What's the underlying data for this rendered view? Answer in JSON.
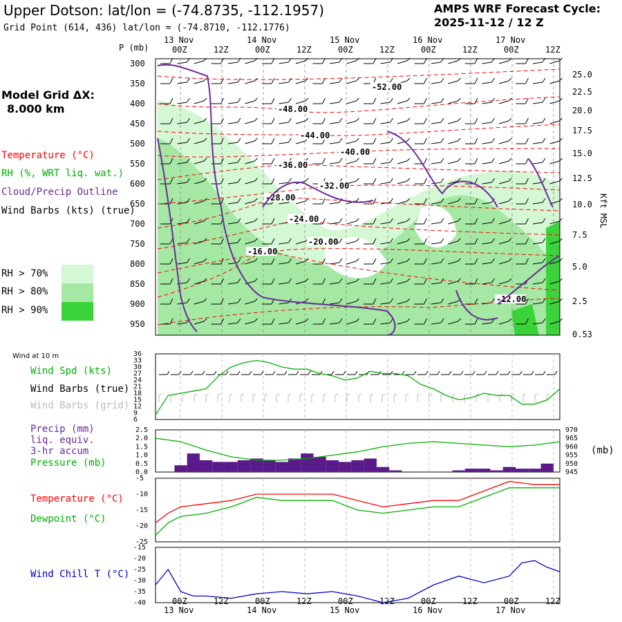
{
  "header": {
    "title": "Upper Dotson:  lat/lon = (-74.8735, -112.1957)",
    "grid_point": "Grid Point (614, 436) lat/lon = (-74.8710, -112.1776)",
    "cycle_line1": "AMPS WRF Forecast Cycle:",
    "cycle_line2": "2025-11-12 / 12  Z"
  },
  "model_grid": {
    "line1": "Model Grid ΔX:",
    "line2": "8.000 km"
  },
  "legend": {
    "temperature": "Temperature (°C)",
    "rh": "RH (%, WRT liq. wat.)",
    "cloud": "Cloud/Precip Outline",
    "wind": "Wind Barbs (kts) (true)",
    "rh70": "RH > 70%",
    "rh80": "RH > 80%",
    "rh90": "RH > 90%",
    "wind10m": "Wind at 10 m",
    "windspd": "Wind Spd (kts)",
    "barbs_true": "Wind Barbs (true)",
    "barbs_grid": "Wind Barbs (grid)",
    "precip1": "Precip (mm)",
    "precip2": "liq. equiv.",
    "precip3": "3-hr accum",
    "pressure": "Pressure (mb)",
    "pressure_units": "(mb)",
    "temp2": "Temperature (°C)",
    "dewpoint": "Dewpoint (°C)",
    "windchill": "Wind Chill T (°C)",
    "kft": "Kft MSL",
    "p_units": "P (mb)"
  },
  "colors": {
    "temperature": "#ff0000",
    "rh_label": "#00b000",
    "cloud": "#6a2a9a",
    "rh70": "#d4f7d4",
    "rh80": "#a4e8a4",
    "rh90": "#3ad43a",
    "windspd": "#00b000",
    "precip_bar": "#5a1a8a",
    "dewpoint": "#00b000",
    "windchill": "#0000c0"
  },
  "chart_data": [
    {
      "type": "heatmap",
      "title": "Upper Dotson:  lat/lon = (-74.8735, -112.1957)",
      "x_date_labels": [
        "13 Nov",
        "14 Nov",
        "15 Nov",
        "16 Nov",
        "17 Nov"
      ],
      "x_time_labels": [
        "00Z",
        "12Z",
        "00Z",
        "12Z",
        "00Z",
        "12Z",
        "00Z",
        "12Z",
        "00Z",
        "12Z"
      ],
      "y_pressure_labels": [
        "300",
        "350",
        "400",
        "450",
        "500",
        "550",
        "600",
        "650",
        "700",
        "750",
        "800",
        "850",
        "900",
        "950"
      ],
      "y_height_labels": [
        "25.0",
        "22.5",
        "20.0",
        "17.5",
        "15.0",
        "12.5",
        "10.0",
        "7.5",
        "5.0",
        "2.5",
        "0.53"
      ],
      "temperature_contour_labels": [
        "-52.00",
        "-48.00",
        "-44.00",
        "-40.00",
        "-36.00",
        "-32.00",
        "-28.00",
        "-24.00",
        "-20.00",
        "-16.00",
        "-12.00"
      ]
    },
    {
      "type": "line",
      "panel": "wind",
      "y_ticks": [
        "36",
        "33",
        "30",
        "27",
        "24",
        "21",
        "18",
        "15",
        "12",
        "9",
        "6"
      ],
      "ylim": [
        6,
        36
      ],
      "series": [
        {
          "name": "Wind Spd (kts)",
          "x_hours": [
            0,
            3,
            6,
            9,
            12,
            15,
            18,
            21,
            24,
            27,
            30,
            33,
            36,
            39,
            42,
            45,
            48,
            51,
            54,
            57,
            60,
            63,
            66,
            69,
            72,
            75,
            78,
            81,
            84,
            87,
            90,
            93,
            96
          ],
          "values": [
            8,
            17,
            18,
            19,
            20,
            26,
            30,
            32,
            33,
            32,
            30,
            29,
            29,
            27,
            26,
            24,
            25,
            28,
            27,
            27,
            26,
            22,
            20,
            17,
            15,
            16,
            18,
            17,
            17,
            13,
            13,
            15,
            20
          ]
        }
      ]
    },
    {
      "type": "bar",
      "panel": "precip_pressure",
      "y_left_ticks": [
        "2.5",
        "2.0",
        "1.5",
        "1.0",
        "0.5",
        "0.0"
      ],
      "y_right_ticks": [
        "970",
        "965",
        "960",
        "955",
        "950",
        "945"
      ],
      "ylim": [
        0,
        2.5
      ],
      "ylim_right": [
        945,
        970
      ],
      "bar_x_hours": [
        6,
        9,
        12,
        15,
        18,
        21,
        24,
        27,
        30,
        33,
        36,
        39,
        42,
        45,
        48,
        51,
        54,
        57,
        60,
        63,
        66,
        69,
        72,
        75,
        78,
        81,
        84,
        87,
        90,
        93
      ],
      "precip_values": [
        0.4,
        1.1,
        0.7,
        0.6,
        0.6,
        0.7,
        0.8,
        0.7,
        0.6,
        0.8,
        1.1,
        0.9,
        0.7,
        0.6,
        0.7,
        0.8,
        0.3,
        0.1,
        0,
        0,
        0,
        0,
        0.1,
        0.2,
        0.2,
        0.1,
        0.3,
        0.2,
        0.2,
        0.5
      ],
      "series": [
        {
          "name": "Pressure (mb)",
          "x_hours": [
            0,
            6,
            12,
            18,
            24,
            30,
            36,
            42,
            48,
            54,
            60,
            66,
            72,
            78,
            84,
            90,
            96
          ],
          "values": [
            965,
            963,
            958,
            954,
            952,
            952,
            953,
            955,
            957,
            960,
            962,
            963,
            962,
            961,
            960,
            961,
            963
          ]
        }
      ]
    },
    {
      "type": "line",
      "panel": "temperature",
      "y_ticks": [
        "-5",
        "-10",
        "-15",
        "-20",
        "-25"
      ],
      "ylim": [
        -25,
        -5
      ],
      "series": [
        {
          "name": "Temperature (°C)",
          "x_hours": [
            0,
            3,
            6,
            12,
            18,
            24,
            30,
            36,
            42,
            48,
            54,
            60,
            66,
            72,
            78,
            84,
            90,
            96
          ],
          "values": [
            -19,
            -16,
            -14,
            -13,
            -12,
            -10,
            -10,
            -10,
            -10,
            -12,
            -14,
            -13,
            -12,
            -12,
            -9,
            -6,
            -7,
            -7
          ]
        },
        {
          "name": "Dewpoint (°C)",
          "x_hours": [
            0,
            3,
            6,
            12,
            18,
            24,
            30,
            36,
            42,
            48,
            54,
            60,
            66,
            72,
            78,
            84,
            90,
            96
          ],
          "values": [
            -23,
            -19,
            -17,
            -16,
            -14,
            -11,
            -12,
            -12,
            -12,
            -15,
            -16,
            -15,
            -14,
            -14,
            -11,
            -8,
            -8,
            -8
          ]
        }
      ]
    },
    {
      "type": "line",
      "panel": "windchill",
      "y_ticks": [
        "-15",
        "-20",
        "-25",
        "-30",
        "-35",
        "-40"
      ],
      "ylim": [
        -40,
        -15
      ],
      "series": [
        {
          "name": "Wind Chill T (°C)",
          "x_hours": [
            0,
            3,
            6,
            9,
            12,
            18,
            24,
            30,
            36,
            42,
            48,
            54,
            60,
            66,
            72,
            78,
            84,
            87,
            90,
            93,
            96
          ],
          "values": [
            -32,
            -25,
            -35,
            -37,
            -37,
            -38,
            -36,
            -35,
            -36,
            -35,
            -37,
            -40,
            -38,
            -32,
            -28,
            -31,
            -28,
            -22,
            -21,
            -24,
            -26
          ]
        }
      ]
    }
  ]
}
